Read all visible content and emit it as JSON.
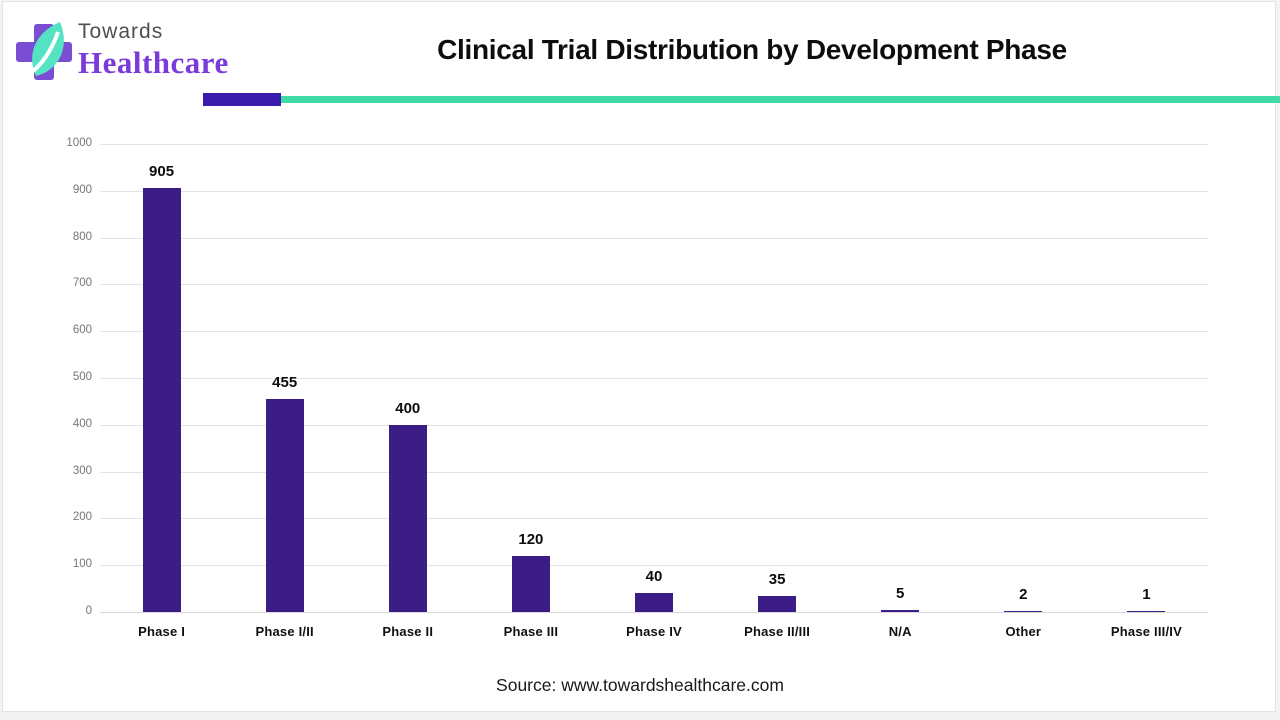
{
  "header": {
    "logo": {
      "line1": "Towards",
      "line2": "Healthcare"
    },
    "title": "Clinical Trial Distribution by Development Phase"
  },
  "footer": {
    "source": "Source: www.towardshealthcare.com"
  },
  "colors": {
    "bar": "#3c1c85",
    "divider_purple": "#3a1bae",
    "divider_teal": "#3edba6",
    "logo_cross_purple": "#7a4ed2",
    "logo_leaf_teal": "#55e4c3",
    "logo_text_purple": "#7b3bdb",
    "gridline": "#e3e3e3",
    "axis_text": "#757575"
  },
  "chart_data": {
    "type": "bar",
    "title": "Clinical Trial Distribution by Development Phase",
    "categories": [
      "Phase I",
      "Phase I/II",
      "Phase II",
      "Phase III",
      "Phase IV",
      "Phase II/III",
      "N/A",
      "Other",
      "Phase III/IV"
    ],
    "values": [
      905,
      455,
      400,
      120,
      40,
      35,
      5,
      2,
      1
    ],
    "data_labels": [
      "905",
      "455",
      "400",
      "120",
      "40",
      "35",
      "5",
      "2",
      "1"
    ],
    "xlabel": "",
    "ylabel": "",
    "ylim": [
      0,
      1000
    ],
    "ytick_step": 100,
    "grid": true,
    "legend": false,
    "bar_color": "#3c1c85"
  }
}
